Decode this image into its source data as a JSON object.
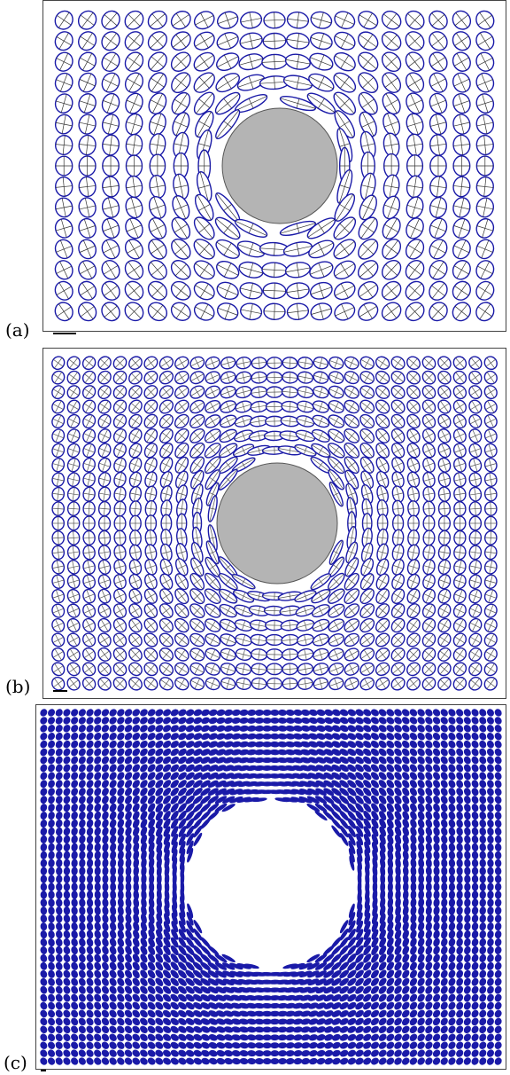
{
  "panels": [
    {
      "id": "a",
      "label": "(a)",
      "grid": {
        "cols": 19,
        "rows": 15
      },
      "ellipse_color": "#1a1aa8",
      "ellipse_fill": "#ffffff",
      "cross_color": "#333333",
      "obstacle_color": "#b4b4b4"
    },
    {
      "id": "b",
      "label": "(b)",
      "grid": {
        "cols": 29,
        "rows": 23
      },
      "ellipse_color": "#1a1aa8",
      "ellipse_fill": "#ffffff",
      "cross_color": "#555555",
      "obstacle_color": "#b4b4b4"
    },
    {
      "id": "c",
      "label": "(c)",
      "grid": {
        "cols": 60,
        "rows": 45
      },
      "ellipse_color": "#1a1aa8",
      "ellipse_fill": "#1a1aa8",
      "cross_color": "#1a1aa8",
      "obstacle_color": "#ffffff"
    }
  ]
}
